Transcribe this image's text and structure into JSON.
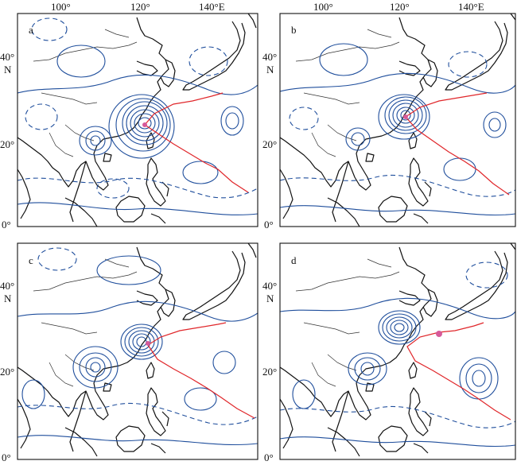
{
  "figure": {
    "lon_ticks": [
      "100°",
      "120°",
      "140°E"
    ],
    "lat_ticks": [
      "40°",
      "20°",
      "0°"
    ],
    "lat_unit": "N",
    "panels": [
      {
        "id": "a",
        "label": "a"
      },
      {
        "id": "b",
        "label": "b"
      },
      {
        "id": "c",
        "label": "c"
      },
      {
        "id": "d",
        "label": "d"
      }
    ]
  },
  "style": {
    "contour_color": "#1f4e9c",
    "track_color": "#e0262a",
    "storm_marker_color": "#d65a9a",
    "coast_color": "#111111"
  }
}
